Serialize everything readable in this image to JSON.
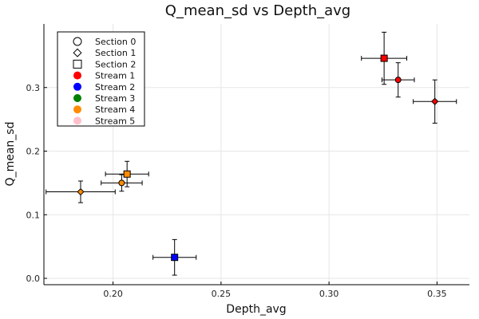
{
  "chart_data": {
    "type": "scatter",
    "title": "Q_mean_sd vs Depth_avg",
    "xlabel": "Depth_avg",
    "ylabel": "Q_mean_sd",
    "xlim": [
      0.168,
      0.365
    ],
    "ylim": [
      -0.01,
      0.4
    ],
    "xticks": [
      0.2,
      0.25,
      0.3,
      0.35
    ],
    "yticks": [
      0.0,
      0.1,
      0.2,
      0.3
    ],
    "xtick_labels": [
      "0.20",
      "0.25",
      "0.30",
      "0.35"
    ],
    "ytick_labels": [
      "0.0",
      "0.1",
      "0.2",
      "0.3"
    ],
    "grid": true,
    "legend_position": "top-left",
    "legend": [
      {
        "label": "Section 0",
        "kind": "marker",
        "marker": "circle",
        "color": "#ffffff"
      },
      {
        "label": "Section 1",
        "kind": "marker",
        "marker": "diamond",
        "color": "#ffffff"
      },
      {
        "label": "Section 2",
        "kind": "marker",
        "marker": "square",
        "color": "#ffffff"
      },
      {
        "label": "Stream 1",
        "kind": "color",
        "marker": "circle",
        "color": "#ff0000"
      },
      {
        "label": "Stream 2",
        "kind": "color",
        "marker": "circle",
        "color": "#0000ff"
      },
      {
        "label": "Stream 3",
        "kind": "color",
        "marker": "circle",
        "color": "#008000"
      },
      {
        "label": "Stream 4",
        "kind": "color",
        "marker": "circle",
        "color": "#ff8c00"
      },
      {
        "label": "Stream 5",
        "kind": "color",
        "marker": "circle",
        "color": "#ffc0cb"
      }
    ],
    "points": [
      {
        "stream": "Stream 1",
        "section": "Section 2",
        "marker": "square",
        "color": "#ff0000",
        "x": 0.3255,
        "y": 0.346,
        "xerr": 0.0105,
        "yerr": 0.041
      },
      {
        "stream": "Stream 1",
        "section": "Section 0",
        "marker": "circle",
        "color": "#ff0000",
        "x": 0.332,
        "y": 0.312,
        "xerr": 0.0075,
        "yerr": 0.027
      },
      {
        "stream": "Stream 1",
        "section": "Section 1",
        "marker": "diamond",
        "color": "#ff0000",
        "x": 0.349,
        "y": 0.278,
        "xerr": 0.01,
        "yerr": 0.034
      },
      {
        "stream": "Stream 2",
        "section": "Section 2",
        "marker": "square",
        "color": "#0000ff",
        "x": 0.2285,
        "y": 0.033,
        "xerr": 0.01,
        "yerr": 0.028
      },
      {
        "stream": "Stream 4",
        "section": "Section 2",
        "marker": "square",
        "color": "#ff8c00",
        "x": 0.2065,
        "y": 0.164,
        "xerr": 0.01,
        "yerr": 0.02
      },
      {
        "stream": "Stream 4",
        "section": "Section 0",
        "marker": "circle",
        "color": "#ff8c00",
        "x": 0.204,
        "y": 0.15,
        "xerr": 0.0095,
        "yerr": 0.013
      },
      {
        "stream": "Stream 4",
        "section": "Section 1",
        "marker": "diamond",
        "color": "#ff8c00",
        "x": 0.185,
        "y": 0.136,
        "xerr": 0.016,
        "yerr": 0.017
      }
    ]
  }
}
